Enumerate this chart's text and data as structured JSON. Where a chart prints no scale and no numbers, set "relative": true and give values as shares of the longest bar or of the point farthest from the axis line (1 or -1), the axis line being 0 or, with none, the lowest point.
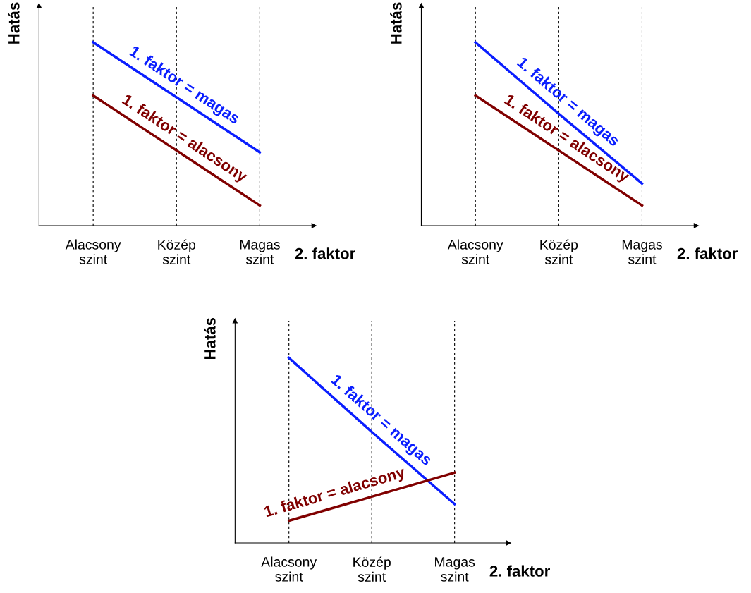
{
  "chart_data": [
    {
      "type": "line",
      "relative": true,
      "categories": [
        "Alacsony\nszint",
        "Közép\nszint",
        "Magas\nszint"
      ],
      "xlabel": "2. faktor",
      "ylabel": "Hatás",
      "grid": "x",
      "legend": false,
      "marker": "none",
      "line_style": "solid",
      "series": [
        {
          "name": "1. faktor = magas",
          "color": "#0a1eff",
          "values": [
            1,
            0.7,
            0.4
          ]
        },
        {
          "name": "1. faktor = alacsony",
          "color": "#800000",
          "values": [
            0.71,
            0.41,
            0.11
          ]
        }
      ]
    },
    {
      "type": "line",
      "relative": true,
      "categories": [
        "Alacsony\nszint",
        "Közép\nszint",
        "Magas\nszint"
      ],
      "xlabel": "2. faktor",
      "ylabel": "Hatás",
      "grid": "x",
      "legend": false,
      "marker": "none",
      "line_style": "solid",
      "series": [
        {
          "name": "1. faktor = magas",
          "color": "#0a1eff",
          "values": [
            1,
            0.61,
            0.23
          ]
        },
        {
          "name": "1. faktor = alacsony",
          "color": "#800000",
          "values": [
            0.71,
            0.41,
            0.11
          ]
        }
      ]
    },
    {
      "type": "line",
      "relative": true,
      "categories": [
        "Alacsony\nszint",
        "Közép\nszint",
        "Magas\nszint"
      ],
      "xlabel": "2. faktor",
      "ylabel": "Hatás",
      "grid": "x",
      "legend": false,
      "marker": "none",
      "line_style": "solid",
      "series": [
        {
          "name": "1. faktor = magas",
          "color": "#0a1eff",
          "values": [
            1,
            0.6,
            0.21
          ]
        },
        {
          "name": "1. faktor = alacsony",
          "color": "#800000",
          "values": [
            0.12,
            0.25,
            0.38
          ]
        }
      ]
    }
  ]
}
